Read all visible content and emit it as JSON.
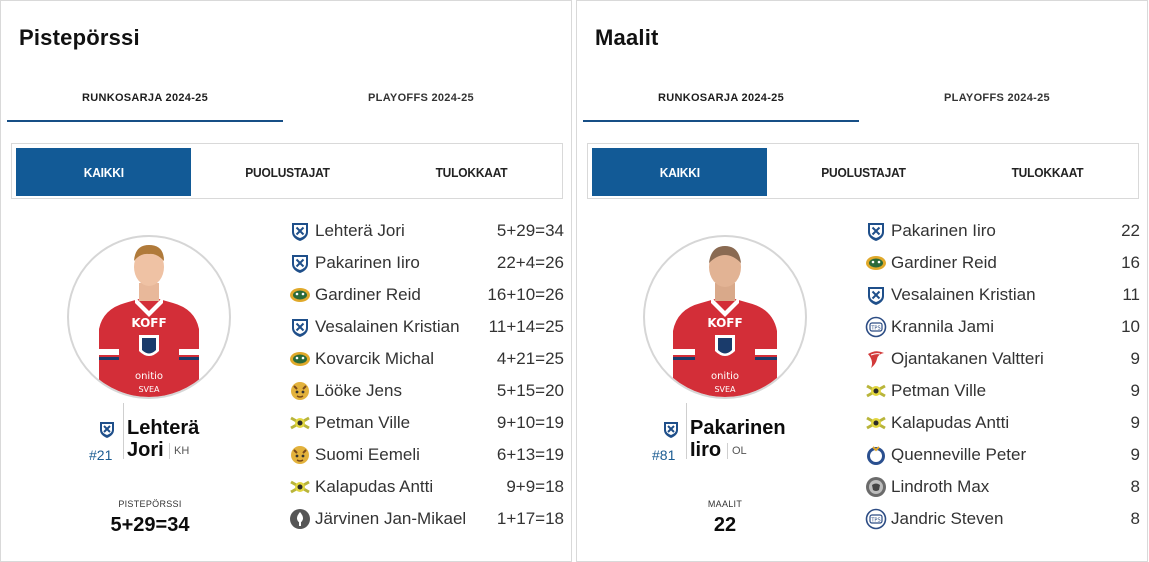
{
  "cards": [
    {
      "title": "Pistepörssi",
      "season_tabs": [
        {
          "label": "RUNKOSARJA 2024-25",
          "active": true
        },
        {
          "label": "PLAYOFFS 2024-25",
          "active": false
        }
      ],
      "filters": [
        {
          "label": "KAIKKI",
          "active": true
        },
        {
          "label": "PUOLUSTAJAT",
          "active": false
        },
        {
          "label": "TULOKKAAT",
          "active": false
        }
      ],
      "leader": {
        "first": "Lehterä",
        "last": "Jori",
        "number": "#21",
        "position": "KH",
        "team_icon": "ifk-logo-icon",
        "stat_label": "PISTEPÖRSSI",
        "stat_value": "5+29=34"
      },
      "rows": [
        {
          "name": "Lehterä Jori",
          "value": "5+29=34",
          "team_icon": "ifk-logo-icon"
        },
        {
          "name": "Pakarinen Iiro",
          "value": "22+4=26",
          "team_icon": "ifk-logo-icon"
        },
        {
          "name": "Gardiner Reid",
          "value": "16+10=26",
          "team_icon": "ilves-logo-icon"
        },
        {
          "name": "Vesalainen Kristian",
          "value": "11+14=25",
          "team_icon": "ifk-logo-icon"
        },
        {
          "name": "Kovarcik Michal",
          "value": "4+21=25",
          "team_icon": "ilves-logo-icon"
        },
        {
          "name": "Lööke Jens",
          "value": "5+15=20",
          "team_icon": "lukko-logo-icon"
        },
        {
          "name": "Petman Ville",
          "value": "9+10=19",
          "team_icon": "kalpa-logo-icon"
        },
        {
          "name": "Suomi Eemeli",
          "value": "6+13=19",
          "team_icon": "lukko-logo-icon"
        },
        {
          "name": "Kalapudas Antti",
          "value": "9+9=18",
          "team_icon": "kalpa-logo-icon"
        },
        {
          "name": "Järvinen Jan-Mikael",
          "value": "1+17=18",
          "team_icon": "assat-logo-icon"
        }
      ]
    },
    {
      "title": "Maalit",
      "season_tabs": [
        {
          "label": "RUNKOSARJA 2024-25",
          "active": true
        },
        {
          "label": "PLAYOFFS 2024-25",
          "active": false
        }
      ],
      "filters": [
        {
          "label": "KAIKKI",
          "active": true
        },
        {
          "label": "PUOLUSTAJAT",
          "active": false
        },
        {
          "label": "TULOKKAAT",
          "active": false
        }
      ],
      "leader": {
        "first": "Pakarinen",
        "last": "Iiro",
        "number": "#81",
        "position": "OL",
        "team_icon": "ifk-logo-icon",
        "stat_label": "MAALIT",
        "stat_value": "22"
      },
      "rows": [
        {
          "name": "Pakarinen Iiro",
          "value": "22",
          "team_icon": "ifk-logo-icon"
        },
        {
          "name": "Gardiner Reid",
          "value": "16",
          "team_icon": "ilves-logo-icon"
        },
        {
          "name": "Vesalainen Kristian",
          "value": "11",
          "team_icon": "ifk-logo-icon"
        },
        {
          "name": "Krannila Jami",
          "value": "10",
          "team_icon": "tps-logo-icon"
        },
        {
          "name": "Ojantakanen Valtteri",
          "value": "9",
          "team_icon": "hpk-logo-icon"
        },
        {
          "name": "Petman Ville",
          "value": "9",
          "team_icon": "kalpa-logo-icon"
        },
        {
          "name": "Kalapudas Antti",
          "value": "9",
          "team_icon": "kalpa-logo-icon"
        },
        {
          "name": "Quenneville Peter",
          "value": "9",
          "team_icon": "kookoo-logo-icon"
        },
        {
          "name": "Lindroth Max",
          "value": "8",
          "team_icon": "jukurit-logo-icon"
        },
        {
          "name": "Jandric Steven",
          "value": "8",
          "team_icon": "tps-logo-icon"
        }
      ]
    }
  ],
  "colors": {
    "accent": "#125a96",
    "tab_underline": "#174f86",
    "text": "#333333",
    "jersey_red": "#d32e38"
  }
}
